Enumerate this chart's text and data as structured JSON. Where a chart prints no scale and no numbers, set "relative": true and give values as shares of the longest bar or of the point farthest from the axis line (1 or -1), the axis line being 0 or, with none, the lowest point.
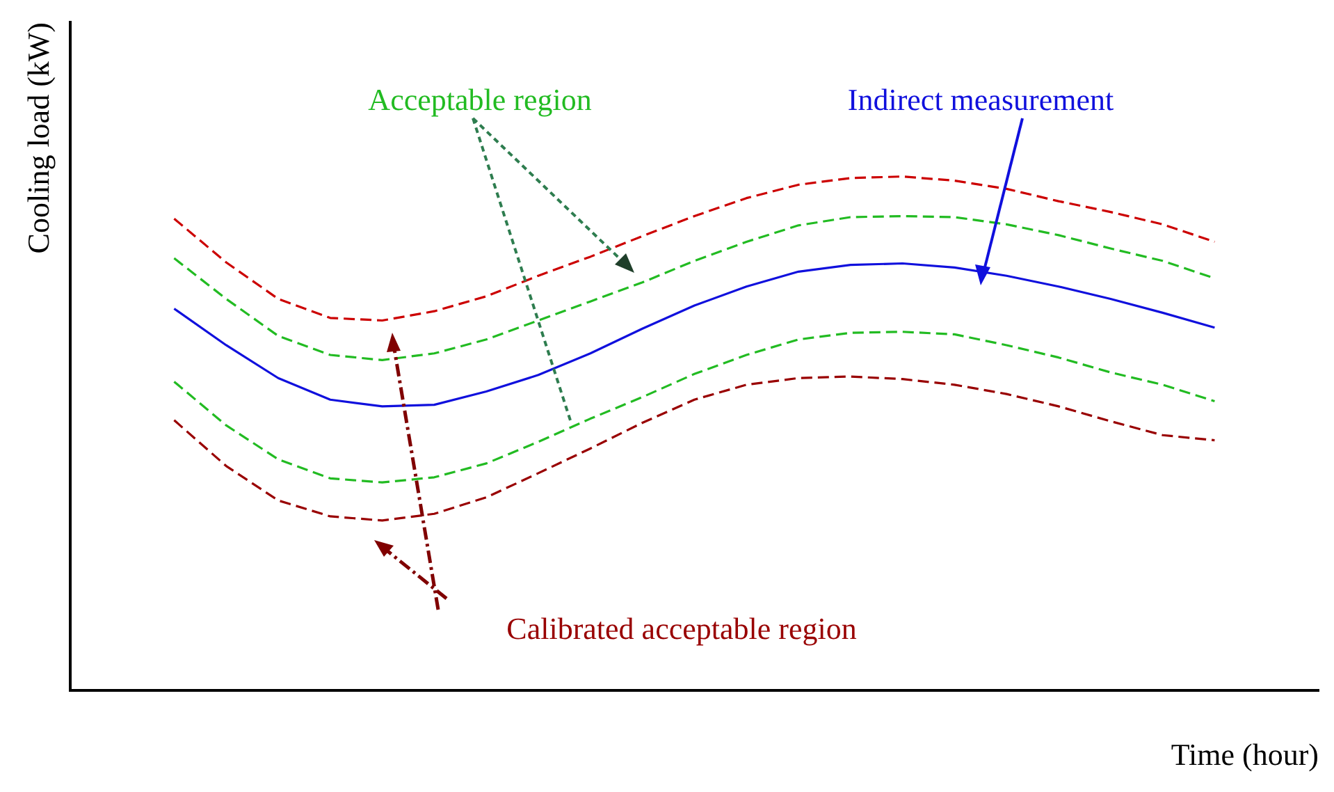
{
  "chart_data": {
    "type": "line",
    "relative": true,
    "ylabel": "Cooling load (kW)",
    "xlabel": "Time (hour)",
    "grid": false,
    "legend": false,
    "marker": "none",
    "categories": [
      null,
      null,
      null,
      null,
      null,
      null,
      null,
      null,
      null,
      null,
      null,
      null,
      null,
      null,
      null,
      null,
      null,
      null,
      null,
      null,
      null,
      null,
      null,
      null,
      null
    ],
    "series": [
      {
        "color": "#cc0000",
        "line_style": "dashed",
        "values": [
          null,
          null,
          0.918,
          0.833,
          0.762,
          0.725,
          0.72,
          0.738,
          0.767,
          0.807,
          0.844,
          0.884,
          0.923,
          0.958,
          0.984,
          0.997,
          1,
          0.992,
          0.976,
          0.952,
          0.931,
          0.907,
          0.873,
          null,
          null
        ]
      },
      {
        "name": "Acceptable region",
        "color": "#22bb22",
        "line_style": "dashed",
        "values": [
          null,
          null,
          0.841,
          0.762,
          0.69,
          0.653,
          0.643,
          0.656,
          0.683,
          0.72,
          0.757,
          0.794,
          0.836,
          0.873,
          0.905,
          0.921,
          0.923,
          0.921,
          0.907,
          0.886,
          0.86,
          0.836,
          0.802,
          null,
          null
        ]
      },
      {
        "name": "Indirect measurement",
        "color": "#1010dd",
        "line_style": "solid",
        "values": [
          null,
          null,
          0.743,
          0.672,
          0.608,
          0.566,
          0.553,
          0.556,
          0.582,
          0.614,
          0.656,
          0.704,
          0.749,
          0.786,
          0.815,
          0.828,
          0.831,
          0.823,
          0.807,
          0.786,
          0.762,
          0.735,
          0.706,
          null,
          null
        ]
      },
      {
        "color": "#22bb22",
        "line_style": "dashed",
        "values": [
          null,
          null,
          0.601,
          0.516,
          0.45,
          0.413,
          0.405,
          0.415,
          0.442,
          0.484,
          0.529,
          0.571,
          0.616,
          0.653,
          0.683,
          0.696,
          0.698,
          0.693,
          0.672,
          0.648,
          0.619,
          0.595,
          0.563,
          null,
          null
        ]
      },
      {
        "name": "Calibrated acceptable region",
        "color": "#990000",
        "line_style": "dashed",
        "values": [
          null,
          null,
          0.526,
          0.437,
          0.37,
          0.339,
          0.331,
          0.344,
          0.376,
          0.423,
          0.471,
          0.521,
          0.566,
          0.595,
          0.608,
          0.611,
          0.606,
          0.595,
          0.577,
          0.553,
          0.524,
          0.497,
          0.487,
          null,
          null
        ]
      }
    ]
  }
}
